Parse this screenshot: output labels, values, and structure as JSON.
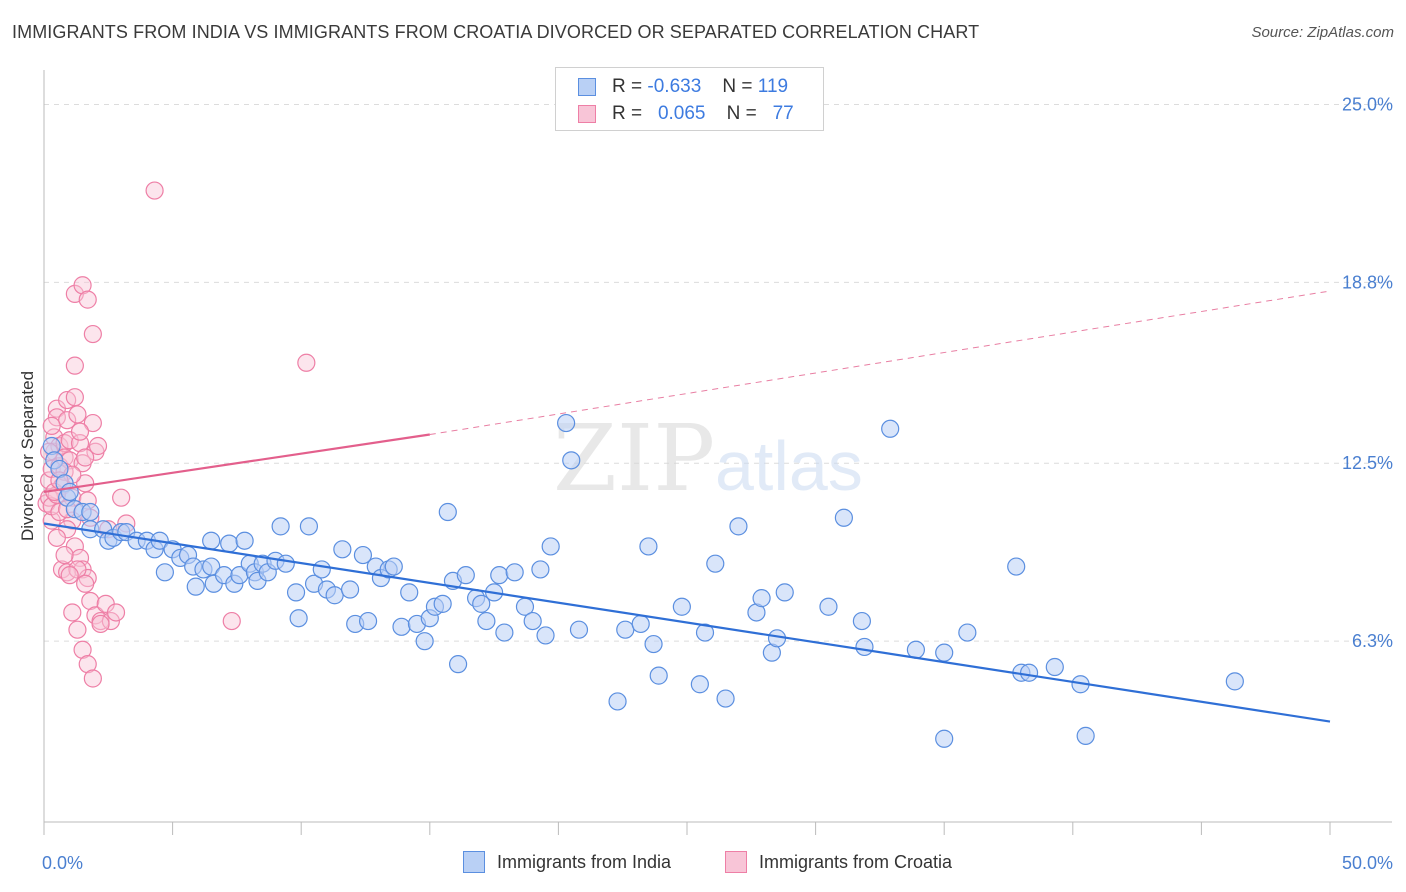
{
  "title": "IMMIGRANTS FROM INDIA VS IMMIGRANTS FROM CROATIA DIVORCED OR SEPARATED CORRELATION CHART",
  "source": "Source: ZipAtlas.com",
  "watermark": {
    "zip": "ZIP",
    "atlas": "atlas"
  },
  "legend": {
    "india": {
      "r_label": "R =",
      "r_value": "-0.633",
      "n_label": "N =",
      "n_value": "119"
    },
    "croatia": {
      "r_label": "R =",
      "r_value": "0.065",
      "n_label": "N =",
      "n_value": "77"
    }
  },
  "chart_data": {
    "type": "scatter",
    "title": "IMMIGRANTS FROM INDIA VS IMMIGRANTS FROM CROATIA DIVORCED OR SEPARATED CORRELATION CHART",
    "xlabel": "",
    "ylabel": "Divorced or Separated",
    "xlim": [
      0,
      50
    ],
    "ylim": [
      0,
      26.2
    ],
    "x_tick_labels": [
      "0.0%",
      "50.0%"
    ],
    "y_ticks": [
      6.3,
      12.5,
      18.8,
      25.0
    ],
    "y_tick_labels": [
      "6.3%",
      "12.5%",
      "18.8%",
      "25.0%"
    ],
    "grid": "horizontal dashed",
    "legend_position": "top-center",
    "colors": {
      "india": "#5b8fe0",
      "india_fill": "#b9d0f5",
      "india_line": "#2f6fd6",
      "croatia": "#ee7fa6",
      "croatia_fill": "#f8c5d7",
      "croatia_line": "#e35f8c"
    },
    "series": [
      {
        "name": "Immigrants from India",
        "trend": {
          "x": [
            0,
            50
          ],
          "y": [
            10.4,
            3.5
          ],
          "style": "solid"
        },
        "points": [
          [
            0.3,
            13.1
          ],
          [
            0.4,
            12.6
          ],
          [
            0.6,
            12.3
          ],
          [
            0.8,
            11.8
          ],
          [
            0.9,
            11.3
          ],
          [
            1.0,
            11.5
          ],
          [
            1.2,
            10.9
          ],
          [
            1.5,
            10.8
          ],
          [
            1.8,
            10.8
          ],
          [
            1.8,
            10.2
          ],
          [
            2.3,
            10.2
          ],
          [
            2.5,
            9.8
          ],
          [
            2.7,
            9.9
          ],
          [
            3.0,
            10.1
          ],
          [
            3.2,
            10.1
          ],
          [
            3.6,
            9.8
          ],
          [
            4.0,
            9.8
          ],
          [
            4.3,
            9.5
          ],
          [
            4.5,
            9.8
          ],
          [
            4.7,
            8.7
          ],
          [
            5.0,
            9.5
          ],
          [
            5.3,
            9.2
          ],
          [
            5.6,
            9.3
          ],
          [
            5.8,
            8.9
          ],
          [
            5.9,
            8.2
          ],
          [
            6.2,
            8.8
          ],
          [
            6.5,
            8.9
          ],
          [
            6.5,
            9.8
          ],
          [
            6.6,
            8.3
          ],
          [
            7.0,
            8.6
          ],
          [
            7.2,
            9.7
          ],
          [
            7.4,
            8.3
          ],
          [
            7.6,
            8.6
          ],
          [
            7.8,
            9.8
          ],
          [
            8.0,
            9.0
          ],
          [
            8.2,
            8.7
          ],
          [
            8.3,
            8.4
          ],
          [
            8.5,
            9.0
          ],
          [
            8.7,
            8.7
          ],
          [
            9.0,
            9.1
          ],
          [
            9.2,
            10.3
          ],
          [
            9.4,
            9.0
          ],
          [
            9.8,
            8.0
          ],
          [
            9.9,
            7.1
          ],
          [
            10.3,
            10.3
          ],
          [
            10.5,
            8.3
          ],
          [
            10.8,
            8.8
          ],
          [
            11.0,
            8.1
          ],
          [
            11.3,
            7.9
          ],
          [
            11.6,
            9.5
          ],
          [
            11.9,
            8.1
          ],
          [
            12.1,
            6.9
          ],
          [
            12.4,
            9.3
          ],
          [
            12.6,
            7.0
          ],
          [
            12.9,
            8.9
          ],
          [
            13.1,
            8.5
          ],
          [
            13.4,
            8.8
          ],
          [
            13.6,
            8.9
          ],
          [
            13.9,
            6.8
          ],
          [
            14.2,
            8.0
          ],
          [
            14.5,
            6.9
          ],
          [
            14.8,
            6.3
          ],
          [
            15.0,
            7.1
          ],
          [
            15.2,
            7.5
          ],
          [
            15.5,
            7.6
          ],
          [
            15.7,
            10.8
          ],
          [
            15.9,
            8.4
          ],
          [
            16.1,
            5.5
          ],
          [
            16.4,
            8.6
          ],
          [
            16.8,
            7.8
          ],
          [
            17.0,
            7.6
          ],
          [
            17.2,
            7.0
          ],
          [
            17.5,
            8.0
          ],
          [
            17.7,
            8.6
          ],
          [
            17.9,
            6.6
          ],
          [
            18.3,
            8.7
          ],
          [
            18.7,
            7.5
          ],
          [
            19.0,
            7.0
          ],
          [
            19.3,
            8.8
          ],
          [
            19.5,
            6.5
          ],
          [
            19.7,
            9.6
          ],
          [
            20.3,
            13.9
          ],
          [
            20.5,
            12.6
          ],
          [
            20.8,
            6.7
          ],
          [
            22.3,
            4.2
          ],
          [
            22.6,
            6.7
          ],
          [
            23.2,
            6.9
          ],
          [
            23.5,
            9.6
          ],
          [
            23.7,
            6.2
          ],
          [
            23.9,
            5.1
          ],
          [
            24.8,
            7.5
          ],
          [
            25.5,
            4.8
          ],
          [
            25.7,
            6.6
          ],
          [
            26.1,
            9.0
          ],
          [
            26.5,
            4.3
          ],
          [
            27.0,
            10.3
          ],
          [
            27.7,
            7.3
          ],
          [
            27.9,
            7.8
          ],
          [
            28.3,
            5.9
          ],
          [
            28.5,
            6.4
          ],
          [
            28.8,
            8.0
          ],
          [
            30.5,
            7.5
          ],
          [
            31.1,
            10.6
          ],
          [
            31.8,
            7.0
          ],
          [
            31.9,
            6.1
          ],
          [
            32.9,
            13.7
          ],
          [
            33.9,
            6.0
          ],
          [
            35.0,
            5.9
          ],
          [
            35.0,
            2.9
          ],
          [
            35.9,
            6.6
          ],
          [
            37.8,
            8.9
          ],
          [
            38.0,
            5.2
          ],
          [
            38.3,
            5.2
          ],
          [
            39.3,
            5.4
          ],
          [
            40.3,
            4.8
          ],
          [
            40.5,
            3.0
          ],
          [
            46.3,
            4.9
          ]
        ]
      },
      {
        "name": "Immigrants from Croatia",
        "trend": {
          "x": [
            0,
            15
          ],
          "y": [
            11.5,
            13.5
          ],
          "style": "solid",
          "extension": {
            "x": [
              15,
              50
            ],
            "y": [
              13.5,
              18.5
            ],
            "style": "dashed"
          }
        },
        "points": [
          [
            0.1,
            11.1
          ],
          [
            0.2,
            11.3
          ],
          [
            0.2,
            11.9
          ],
          [
            0.3,
            10.5
          ],
          [
            0.3,
            12.3
          ],
          [
            0.4,
            13.4
          ],
          [
            0.4,
            12.9
          ],
          [
            0.5,
            14.4
          ],
          [
            0.5,
            14.1
          ],
          [
            0.6,
            13.1
          ],
          [
            0.6,
            12.4
          ],
          [
            0.7,
            11.7
          ],
          [
            0.8,
            13.2
          ],
          [
            0.8,
            12.7
          ],
          [
            0.9,
            14.7
          ],
          [
            0.9,
            14.0
          ],
          [
            1.0,
            13.3
          ],
          [
            1.0,
            12.6
          ],
          [
            1.1,
            11.3
          ],
          [
            1.1,
            10.5
          ],
          [
            1.2,
            14.8
          ],
          [
            1.3,
            14.2
          ],
          [
            1.4,
            13.2
          ],
          [
            1.5,
            12.5
          ],
          [
            1.6,
            11.8
          ],
          [
            1.7,
            11.2
          ],
          [
            1.8,
            10.6
          ],
          [
            1.9,
            13.9
          ],
          [
            2.0,
            12.9
          ],
          [
            0.3,
            11.0
          ],
          [
            0.6,
            10.8
          ],
          [
            0.9,
            10.2
          ],
          [
            1.2,
            9.6
          ],
          [
            1.4,
            9.2
          ],
          [
            1.5,
            8.8
          ],
          [
            1.7,
            8.5
          ],
          [
            0.7,
            8.8
          ],
          [
            0.9,
            8.7
          ],
          [
            1.3,
            8.8
          ],
          [
            1.6,
            8.3
          ],
          [
            1.8,
            7.7
          ],
          [
            2.0,
            7.2
          ],
          [
            2.2,
            7.0
          ],
          [
            2.4,
            7.6
          ],
          [
            2.6,
            7.0
          ],
          [
            2.8,
            7.3
          ],
          [
            1.1,
            7.3
          ],
          [
            1.3,
            6.7
          ],
          [
            1.5,
            6.0
          ],
          [
            1.7,
            5.5
          ],
          [
            1.9,
            5.0
          ],
          [
            2.2,
            6.9
          ],
          [
            2.5,
            10.2
          ],
          [
            3.0,
            11.3
          ],
          [
            3.2,
            10.4
          ],
          [
            1.2,
            18.4
          ],
          [
            1.5,
            18.7
          ],
          [
            1.7,
            18.2
          ],
          [
            1.9,
            17.0
          ],
          [
            1.2,
            15.9
          ],
          [
            4.3,
            22.0
          ],
          [
            10.2,
            16.0
          ],
          [
            7.3,
            7.0
          ],
          [
            0.5,
            11.4
          ],
          [
            0.8,
            12.2
          ],
          [
            1.1,
            12.1
          ],
          [
            1.4,
            13.6
          ],
          [
            0.2,
            12.9
          ],
          [
            0.4,
            11.5
          ],
          [
            0.6,
            11.9
          ],
          [
            0.9,
            10.9
          ],
          [
            1.6,
            12.7
          ],
          [
            2.1,
            13.1
          ],
          [
            0.3,
            13.8
          ],
          [
            0.5,
            9.9
          ],
          [
            0.8,
            9.3
          ],
          [
            1.0,
            8.6
          ]
        ]
      }
    ]
  },
  "bottom_legend": [
    "Immigrants from India",
    "Immigrants from Croatia"
  ]
}
